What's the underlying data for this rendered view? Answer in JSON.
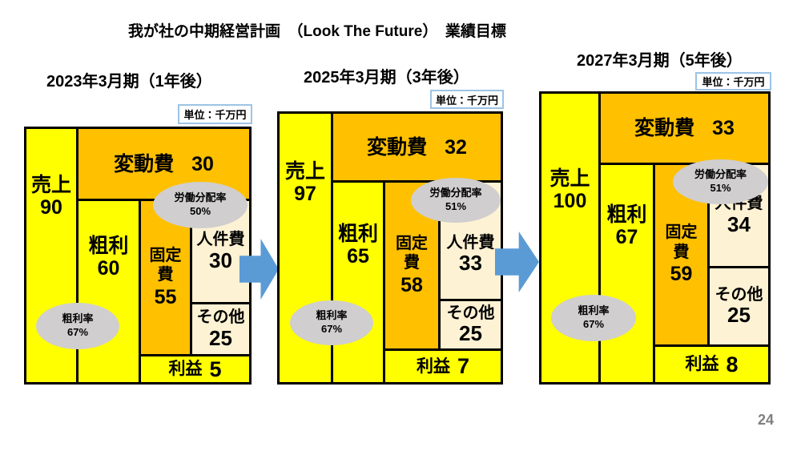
{
  "slide": {
    "title": "我が社の中期経営計画　（Look The Future）　業績目標",
    "page_number": "24"
  },
  "colors": {
    "yellow": "#FFFF00",
    "orange": "#FFC000",
    "cream": "#FDF2D3",
    "gray": "#D0CECE",
    "arrow": "#5B9BD5",
    "unitborder": "#9DC3E6"
  },
  "diagrams": [
    {
      "period": "2023年3月期（1年後）",
      "unit": "単位：千万円",
      "sales_label": "売上",
      "sales_value": "90",
      "variable_label": "変動費",
      "variable_value": "30",
      "gross_label": "粗利",
      "gross_value": "60",
      "fixed_label": "固定費",
      "fixed_value": "55",
      "labor_label": "人件費",
      "labor_value": "30",
      "other_label": "その他",
      "other_value": "25",
      "profit_label": "利益",
      "profit_value": "5",
      "labor_share_label": "労働分配率",
      "labor_share_value": "50%",
      "gross_margin_label": "粗利率",
      "gross_margin_value": "67%"
    },
    {
      "period": "2025年3月期（3年後）",
      "unit": "単位：千万円",
      "sales_label": "売上",
      "sales_value": "97",
      "variable_label": "変動費",
      "variable_value": "32",
      "gross_label": "粗利",
      "gross_value": "65",
      "fixed_label": "固定費",
      "fixed_value": "58",
      "labor_label": "人件費",
      "labor_value": "33",
      "other_label": "その他",
      "other_value": "25",
      "profit_label": "利益",
      "profit_value": "7",
      "labor_share_label": "労働分配率",
      "labor_share_value": "51%",
      "gross_margin_label": "粗利率",
      "gross_margin_value": "67%"
    },
    {
      "period": "2027年3月期（5年後）",
      "unit": "単位：千万円",
      "sales_label": "売上",
      "sales_value": "100",
      "variable_label": "変動費",
      "variable_value": "33",
      "gross_label": "粗利",
      "gross_value": "67",
      "fixed_label": "固定費",
      "fixed_value": "59",
      "labor_label": "人件費",
      "labor_value": "34",
      "other_label": "その他",
      "other_value": "25",
      "profit_label": "利益",
      "profit_value": "8",
      "labor_share_label": "労働分配率",
      "labor_share_value": "51%",
      "gross_margin_label": "粗利率",
      "gross_margin_value": "67%"
    }
  ]
}
